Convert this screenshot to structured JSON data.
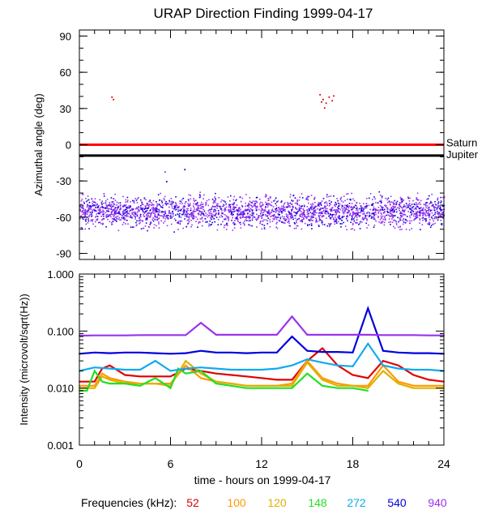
{
  "title": "URAP Direction Finding  1999-04-17",
  "xlabel": "time - hours on 1999-04-17",
  "legend_label": "Frequencies (kHz):",
  "legend": [
    {
      "label": "52",
      "color": "#e00000"
    },
    {
      "label": "100",
      "color": "#ff9900"
    },
    {
      "label": "120",
      "color": "#e0b000"
    },
    {
      "label": "148",
      "color": "#22e022"
    },
    {
      "label": "272",
      "color": "#11aaee"
    },
    {
      "label": "540",
      "color": "#0000dd"
    },
    {
      "label": "940",
      "color": "#9933ee"
    }
  ],
  "chart_data": [
    {
      "type": "scatter",
      "title": "URAP Direction Finding  1999-04-17",
      "xlabel": "",
      "ylabel": "Azimuthal angle (deg)",
      "xlim": [
        0,
        24
      ],
      "ylim": [
        -95,
        95
      ],
      "xticks": [
        "0",
        "6",
        "12",
        "18",
        "24"
      ],
      "yticks": [
        "90",
        "60",
        "30",
        "0",
        "-30",
        "-60",
        "-90"
      ],
      "reference_lines": [
        {
          "label": "Saturn",
          "y": 0,
          "color": "#ff0000"
        },
        {
          "label": "Jupiter",
          "y": -9,
          "color": "#000000"
        }
      ],
      "band": {
        "x_range": [
          0,
          24
        ],
        "y_center": -55,
        "y_spread": 9,
        "colors": [
          "#9933ee",
          "#0000dd"
        ]
      },
      "outliers": [
        {
          "x": 2.1,
          "y": 40,
          "color": "#e00000"
        },
        {
          "x": 2.2,
          "y": 38,
          "color": "#e00000"
        },
        {
          "x": 15.8,
          "y": 42,
          "color": "#e00000"
        },
        {
          "x": 16.0,
          "y": 38,
          "color": "#e00000"
        },
        {
          "x": 16.2,
          "y": 35,
          "color": "#e00000"
        },
        {
          "x": 16.4,
          "y": 40,
          "color": "#e00000"
        },
        {
          "x": 16.1,
          "y": 31,
          "color": "#e00000"
        },
        {
          "x": 16.6,
          "y": 37,
          "color": "#e00000"
        },
        {
          "x": 15.9,
          "y": 36,
          "color": "#e00000"
        },
        {
          "x": 16.7,
          "y": 41,
          "color": "#e00000"
        },
        {
          "x": 5.6,
          "y": -22,
          "color": "#9933ee"
        },
        {
          "x": 6.9,
          "y": -20,
          "color": "#0000dd"
        },
        {
          "x": 5.7,
          "y": -30,
          "color": "#0000dd"
        }
      ]
    },
    {
      "type": "line",
      "xlabel": "time - hours on 1999-04-17",
      "ylabel": "Intensity (microvolt/sqrt(Hz))",
      "yscale": "log",
      "xlim": [
        0,
        24
      ],
      "ylim": [
        0.001,
        1.0
      ],
      "xticks": [
        "0",
        "6",
        "12",
        "18",
        "24"
      ],
      "yticks": [
        "1.000",
        "0.100",
        "0.010",
        "0.001"
      ],
      "series": [
        {
          "name": "52",
          "color": "#e00000",
          "x": [
            0,
            1,
            1.5,
            2,
            3,
            4,
            5,
            6,
            7,
            8,
            9,
            10,
            11,
            12,
            13,
            14,
            15,
            16,
            17,
            18,
            19,
            20,
            21,
            22,
            23,
            24
          ],
          "values": [
            0.013,
            0.013,
            0.022,
            0.025,
            0.017,
            0.016,
            0.016,
            0.016,
            0.022,
            0.02,
            0.018,
            0.017,
            0.016,
            0.015,
            0.014,
            0.014,
            0.03,
            0.05,
            0.025,
            0.017,
            0.015,
            0.03,
            0.025,
            0.017,
            0.014,
            0.013
          ]
        },
        {
          "name": "100",
          "color": "#ff9900",
          "x": [
            0,
            1,
            1.5,
            2,
            3,
            4,
            5,
            6,
            7,
            8,
            9,
            10,
            11,
            12,
            13,
            14,
            15,
            16,
            17,
            18,
            19,
            20,
            21,
            22,
            23,
            24
          ],
          "values": [
            0.011,
            0.011,
            0.018,
            0.015,
            0.013,
            0.012,
            0.012,
            0.012,
            0.025,
            0.015,
            0.013,
            0.012,
            0.011,
            0.011,
            0.011,
            0.012,
            0.03,
            0.015,
            0.012,
            0.011,
            0.011,
            0.025,
            0.013,
            0.011,
            0.011,
            0.011
          ]
        },
        {
          "name": "120",
          "color": "#e0b000",
          "x": [
            0,
            1,
            1.5,
            2,
            3,
            4,
            5,
            6,
            7,
            8,
            9,
            10,
            11,
            12,
            13,
            14,
            15,
            16,
            17,
            18,
            19,
            20,
            21,
            22,
            23,
            24
          ],
          "values": [
            0.01,
            0.01,
            0.016,
            0.014,
            0.012,
            0.012,
            0.012,
            0.011,
            0.03,
            0.018,
            0.013,
            0.012,
            0.011,
            0.011,
            0.011,
            0.011,
            0.028,
            0.014,
            0.011,
            0.011,
            0.01,
            0.02,
            0.012,
            0.01,
            0.01,
            0.01
          ]
        },
        {
          "name": "148",
          "color": "#22e022",
          "x": [
            0,
            0.5,
            1,
            1.5,
            2,
            3,
            4,
            5,
            6,
            6.5,
            7,
            8,
            9,
            10,
            11,
            12,
            13,
            14,
            15,
            16,
            17,
            18,
            19
          ],
          "values": [
            0.009,
            0.009,
            0.02,
            0.013,
            0.012,
            0.012,
            0.011,
            0.015,
            0.01,
            0.022,
            0.018,
            0.02,
            0.012,
            0.011,
            0.01,
            0.01,
            0.01,
            0.01,
            0.018,
            0.011,
            0.01,
            0.01,
            0.009
          ]
        },
        {
          "name": "272",
          "color": "#11aaee",
          "x": [
            0,
            1,
            2,
            3,
            4,
            5,
            6,
            7,
            8,
            9,
            10,
            11,
            12,
            13,
            14,
            15,
            16,
            17,
            18,
            19,
            20,
            21,
            22,
            23,
            24
          ],
          "values": [
            0.02,
            0.023,
            0.022,
            0.021,
            0.021,
            0.03,
            0.02,
            0.022,
            0.023,
            0.022,
            0.021,
            0.021,
            0.021,
            0.022,
            0.025,
            0.032,
            0.028,
            0.025,
            0.024,
            0.06,
            0.025,
            0.022,
            0.021,
            0.021,
            0.02
          ]
        },
        {
          "name": "540",
          "color": "#0000dd",
          "x": [
            0,
            1,
            2,
            3,
            4,
            5,
            6,
            7,
            8,
            9,
            10,
            11,
            12,
            13,
            14,
            15,
            16,
            17,
            18,
            19,
            20,
            21,
            22,
            23,
            24
          ],
          "values": [
            0.04,
            0.042,
            0.041,
            0.042,
            0.042,
            0.041,
            0.04,
            0.041,
            0.045,
            0.042,
            0.042,
            0.041,
            0.042,
            0.042,
            0.08,
            0.045,
            0.043,
            0.043,
            0.042,
            0.25,
            0.045,
            0.042,
            0.041,
            0.041,
            0.04
          ]
        },
        {
          "name": "940",
          "color": "#9933ee",
          "x": [
            0,
            1,
            2,
            3,
            4,
            5,
            6,
            7,
            8,
            9,
            10,
            11,
            12,
            13,
            14,
            15,
            16,
            17,
            18,
            19,
            20,
            21,
            22,
            23,
            24
          ],
          "values": [
            0.083,
            0.084,
            0.084,
            0.084,
            0.085,
            0.085,
            0.085,
            0.085,
            0.14,
            0.086,
            0.086,
            0.086,
            0.086,
            0.086,
            0.18,
            0.086,
            0.086,
            0.086,
            0.086,
            0.086,
            0.085,
            0.085,
            0.085,
            0.084,
            0.084
          ]
        }
      ]
    }
  ]
}
